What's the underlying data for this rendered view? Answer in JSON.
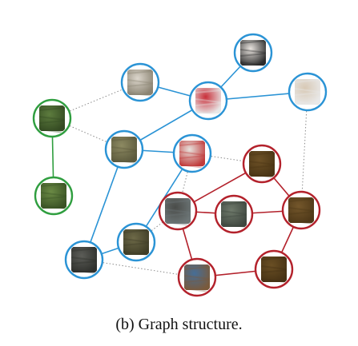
{
  "caption": "(b) Graph structure.",
  "colors": {
    "blue": "#2a93d5",
    "green": "#2f9e3f",
    "red": "#b3212b",
    "dotted": "#8c8c8c"
  },
  "clusters": [
    {
      "name": "blue",
      "color": "blue"
    },
    {
      "name": "green",
      "color": "green"
    },
    {
      "name": "red",
      "color": "red"
    }
  ],
  "nodes": [
    {
      "id": "b1",
      "cluster": "blue",
      "patch": "white bag with black handle",
      "fill": "#e9e4df",
      "shade": "#2b2b2b"
    },
    {
      "id": "b2",
      "cluster": "blue",
      "patch": "white bag",
      "fill": "#dcd6cc",
      "shade": "#8a8372"
    },
    {
      "id": "b3",
      "cluster": "blue",
      "patch": "red bag",
      "fill": "#c9303a",
      "shade": "#e8e8e8"
    },
    {
      "id": "b4",
      "cluster": "blue",
      "patch": "bag on leg",
      "fill": "#d8c9b5",
      "shade": "#e9e9e9"
    },
    {
      "id": "b5",
      "cluster": "blue",
      "patch": "leaves with stone",
      "fill": "#8d8a62",
      "shade": "#5c5a3d"
    },
    {
      "id": "b6",
      "cluster": "blue",
      "patch": "white bag with red",
      "fill": "#e7e2dd",
      "shade": "#c03a3a"
    },
    {
      "id": "b7",
      "cluster": "blue",
      "patch": "leaves",
      "fill": "#6e6a48",
      "shade": "#3f3d27"
    },
    {
      "id": "b8",
      "cluster": "blue",
      "patch": "dark pavement",
      "fill": "#5c5d58",
      "shade": "#2f302c"
    },
    {
      "id": "g1",
      "cluster": "green",
      "patch": "foliage",
      "fill": "#5d7c3e",
      "shade": "#344a22"
    },
    {
      "id": "g2",
      "cluster": "green",
      "patch": "foliage",
      "fill": "#6b8a45",
      "shade": "#3a5325"
    },
    {
      "id": "r1",
      "cluster": "red",
      "patch": "brown texture",
      "fill": "#6d5126",
      "shade": "#4a3515"
    },
    {
      "id": "r2",
      "cluster": "red",
      "patch": "dark bag",
      "fill": "#4a4c49",
      "shade": "#6d7677"
    },
    {
      "id": "r3",
      "cluster": "red",
      "patch": "green-grey fabric",
      "fill": "#6f7a6b",
      "shade": "#3f4740"
    },
    {
      "id": "r4",
      "cluster": "red",
      "patch": "brown texture",
      "fill": "#74572b",
      "shade": "#4e3818"
    },
    {
      "id": "r5",
      "cluster": "red",
      "patch": "jeans",
      "fill": "#466e97",
      "shade": "#7a5a3b"
    },
    {
      "id": "r6",
      "cluster": "red",
      "patch": "brown texture",
      "fill": "#6a4f24",
      "shade": "#463214"
    }
  ],
  "edges": [
    [
      "b1",
      "b3"
    ],
    [
      "b2",
      "b3"
    ],
    [
      "b3",
      "b4"
    ],
    [
      "b3",
      "b5"
    ],
    [
      "b5",
      "b6"
    ],
    [
      "b5",
      "b8"
    ],
    [
      "b6",
      "b7"
    ],
    [
      "b7",
      "b8"
    ],
    [
      "g1",
      "g2"
    ],
    [
      "r1",
      "r2"
    ],
    [
      "r1",
      "r4"
    ],
    [
      "r2",
      "r3"
    ],
    [
      "r3",
      "r4"
    ],
    [
      "r2",
      "r5"
    ],
    [
      "r4",
      "r6"
    ],
    [
      "r5",
      "r6"
    ]
  ],
  "dotted_edges": [
    [
      "g1",
      "b2"
    ],
    [
      "g1",
      "b5"
    ],
    [
      "b6",
      "r1"
    ],
    [
      "b4",
      "r4"
    ],
    [
      "b8",
      "r5"
    ],
    [
      "b7",
      "r2"
    ],
    [
      "b6",
      "r2"
    ]
  ]
}
